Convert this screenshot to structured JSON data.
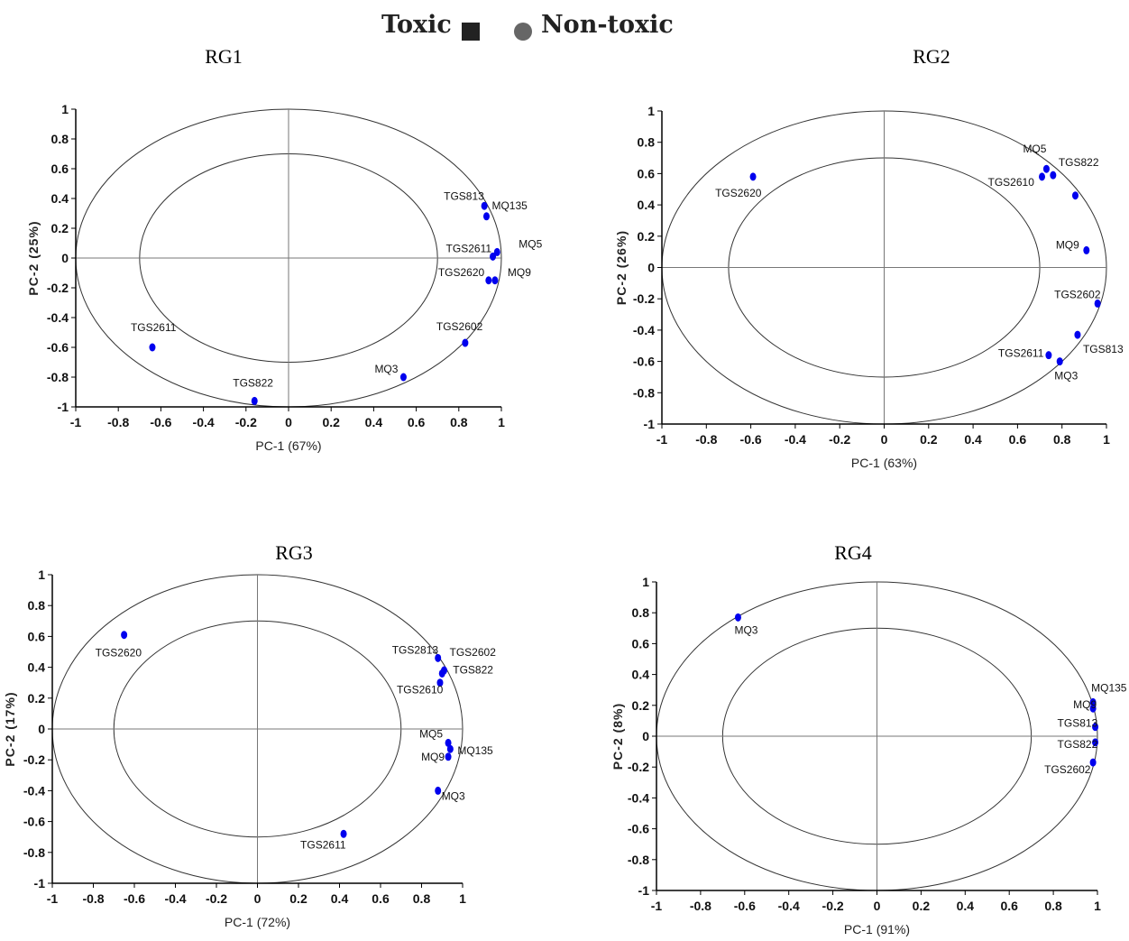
{
  "legend": {
    "toxic_label": "Toxic",
    "nontoxic_label": "Non-toxic",
    "toxic_color": "#222222",
    "nontoxic_color": "#666666"
  },
  "point_color": "#0000ee",
  "chart_data": [
    {
      "type": "scatter",
      "title": "RG1",
      "xlabel": "PC-1 (67%)",
      "ylabel": "PC-2 (25%)",
      "xlim": [
        -1,
        1
      ],
      "ylim": [
        -1,
        1
      ],
      "xticks": [
        "-1",
        "-0.8",
        "-0.6",
        "-0.4",
        "-0.2",
        "0",
        "0.2",
        "0.4",
        "0.6",
        "0.8",
        "1"
      ],
      "yticks": [
        "1",
        "0.8",
        "0.6",
        "0.4",
        "0.2",
        "0",
        "-0.2",
        "-0.4",
        "-0.6",
        "-0.8",
        "-1"
      ],
      "circles": [
        1.0,
        0.7
      ],
      "points": [
        {
          "label": "TGS813",
          "x": 0.92,
          "y": 0.35
        },
        {
          "label": "MQ135",
          "x": 0.93,
          "y": 0.28
        },
        {
          "label": "TGS2611",
          "x": 0.96,
          "y": 0.01
        },
        {
          "label": "MQ5",
          "x": 0.98,
          "y": 0.04
        },
        {
          "label": "TGS2620",
          "x": 0.94,
          "y": -0.15
        },
        {
          "label": "MQ9",
          "x": 0.97,
          "y": -0.15
        },
        {
          "label": "TGS2602",
          "x": 0.83,
          "y": -0.57
        },
        {
          "label": "MQ3",
          "x": 0.54,
          "y": -0.8
        },
        {
          "label": "TGS2611",
          "x": -0.64,
          "y": -0.6
        },
        {
          "label": "TGS822",
          "x": -0.16,
          "y": -0.96
        }
      ]
    },
    {
      "type": "scatter",
      "title": "RG2",
      "xlabel": "PC-1 (63%)",
      "ylabel": "PC-2 (26%)",
      "xlim": [
        -1,
        1
      ],
      "ylim": [
        -1,
        1
      ],
      "xticks": [
        "-1",
        "-0.8",
        "-0.6",
        "-0.4",
        "-0.2",
        "0",
        "0.2",
        "0.4",
        "0.6",
        "0.8",
        "1"
      ],
      "yticks": [
        "1",
        "0.8",
        "0.6",
        "0.4",
        "0.2",
        "0",
        "-0.2",
        "-0.4",
        "-0.6",
        "-0.8",
        "-1"
      ],
      "circles": [
        1.0,
        0.7
      ],
      "points": [
        {
          "label": "TGS2620",
          "x": -0.59,
          "y": 0.58
        },
        {
          "label": "MQ5",
          "x": 0.73,
          "y": 0.63
        },
        {
          "label": "TGS2610",
          "x": 0.71,
          "y": 0.58
        },
        {
          "label": "TGS822",
          "x": 0.76,
          "y": 0.59
        },
        {
          "label": "",
          "x": 0.86,
          "y": 0.46
        },
        {
          "label": "MQ9",
          "x": 0.91,
          "y": 0.11
        },
        {
          "label": "TGS2602",
          "x": 0.96,
          "y": -0.23
        },
        {
          "label": "TGS813",
          "x": 0.87,
          "y": -0.43
        },
        {
          "label": "TGS2611",
          "x": 0.74,
          "y": -0.56
        },
        {
          "label": "MQ3",
          "x": 0.79,
          "y": -0.6
        }
      ]
    },
    {
      "type": "scatter",
      "title": "RG3",
      "xlabel": "PC-1 (72%)",
      "ylabel": "PC-2 (17%)",
      "xlim": [
        -1,
        1
      ],
      "ylim": [
        -1,
        1
      ],
      "xticks": [
        "-1",
        "-0.8",
        "-0.6",
        "-0.4",
        "-0.2",
        "0",
        "0.2",
        "0.4",
        "0.6",
        "0.8",
        "1"
      ],
      "yticks": [
        "1",
        "0.8",
        "0.6",
        "0.4",
        "0.2",
        "0",
        "-0.2",
        "-0.4",
        "-0.6",
        "-0.8",
        "-1"
      ],
      "circles": [
        1.0,
        0.7
      ],
      "points": [
        {
          "label": "TGS2620",
          "x": -0.65,
          "y": 0.61
        },
        {
          "label": "TGS2813",
          "x": 0.88,
          "y": 0.46
        },
        {
          "label": "TGS2602",
          "x": 0.91,
          "y": 0.38
        },
        {
          "label": "TGS822",
          "x": 0.9,
          "y": 0.36
        },
        {
          "label": "TGS2610",
          "x": 0.89,
          "y": 0.3
        },
        {
          "label": "MQ5",
          "x": 0.93,
          "y": -0.09
        },
        {
          "label": "MQ135",
          "x": 0.94,
          "y": -0.13
        },
        {
          "label": "MQ9",
          "x": 0.93,
          "y": -0.18
        },
        {
          "label": "MQ3",
          "x": 0.88,
          "y": -0.4
        },
        {
          "label": "TGS2611",
          "x": 0.42,
          "y": -0.68
        }
      ]
    },
    {
      "type": "scatter",
      "title": "RG4",
      "xlabel": "PC-1 (91%)",
      "ylabel": "PC-2 (8%)",
      "xlim": [
        -1,
        1
      ],
      "ylim": [
        -1,
        1
      ],
      "xticks": [
        "-1",
        "-0.8",
        "-0.6",
        "-0.4",
        "-0.2",
        "0",
        "0.2",
        "0.4",
        "0.6",
        "0.8",
        "1"
      ],
      "yticks": [
        "1",
        "0.8",
        "0.6",
        "0.4",
        "0.2",
        "0",
        "-0.2",
        "-0.4",
        "-0.6",
        "-0.8",
        "-1"
      ],
      "circles": [
        1.0,
        0.7
      ],
      "points": [
        {
          "label": "MQ3",
          "x": -0.63,
          "y": 0.77
        },
        {
          "label": "MQ135",
          "x": 0.98,
          "y": 0.22
        },
        {
          "label": "MQ9",
          "x": 0.98,
          "y": 0.18
        },
        {
          "label": "TGS813",
          "x": 0.99,
          "y": 0.06
        },
        {
          "label": "TGS822",
          "x": 0.99,
          "y": -0.04
        },
        {
          "label": "TGS2602",
          "x": 0.98,
          "y": -0.17
        }
      ]
    }
  ]
}
